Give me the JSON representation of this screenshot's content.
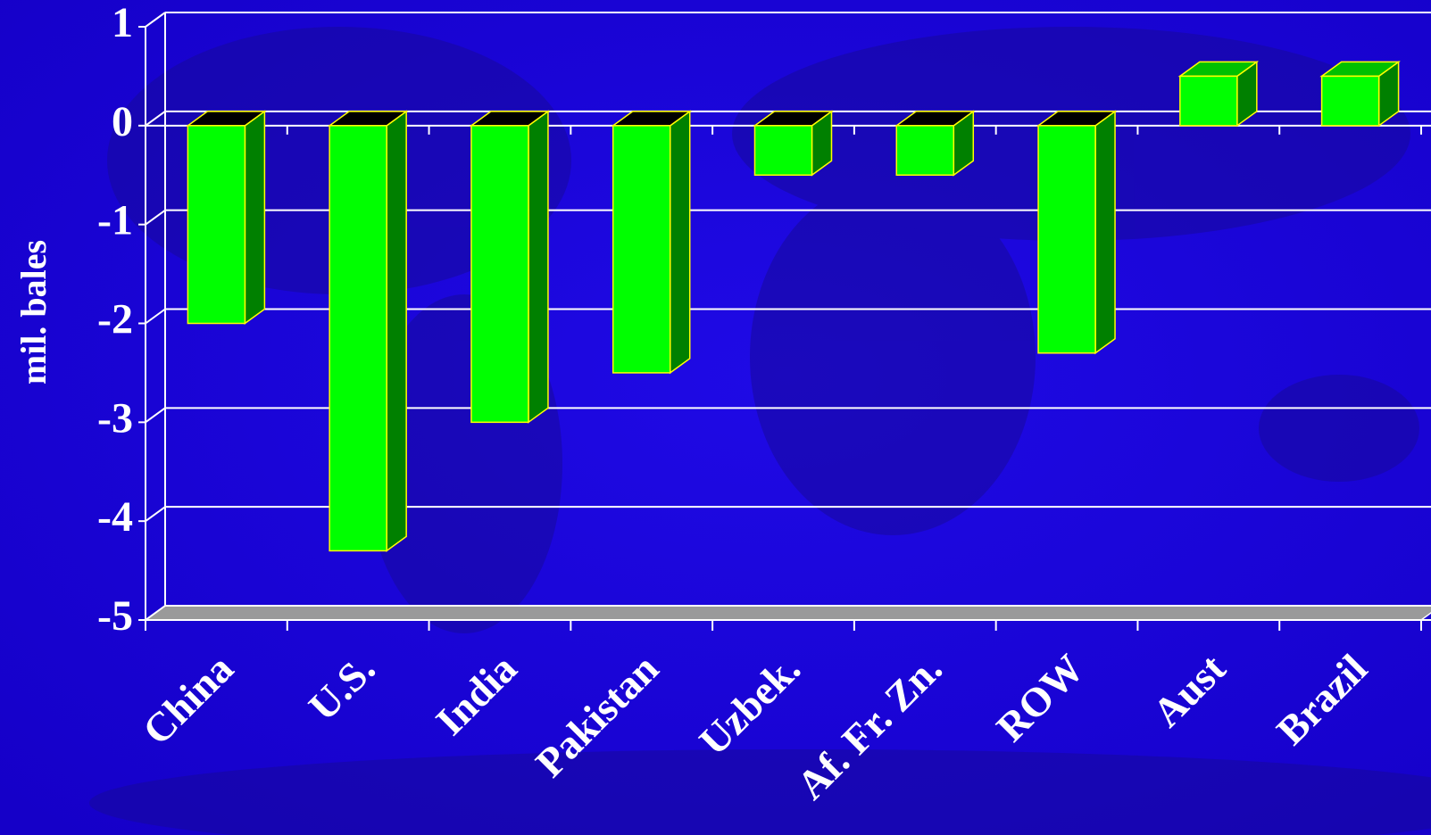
{
  "chart_data": {
    "type": "bar3d",
    "y_label": "mil. bales",
    "categories": [
      "China",
      "U.S.",
      "India",
      "Pakistan",
      "Uzbek.",
      "Af. Fr. Zn.",
      "ROW",
      "Aust",
      "Brazil"
    ],
    "values": [
      -2.0,
      -4.3,
      -3.0,
      -2.5,
      -0.5,
      -0.5,
      -2.3,
      0.5,
      0.5
    ],
    "color": "#00ff00",
    "ylim": [
      -5,
      1
    ],
    "yticks": [
      -5,
      -4,
      -3,
      -2,
      -1,
      0,
      1
    ],
    "grid": true
  }
}
